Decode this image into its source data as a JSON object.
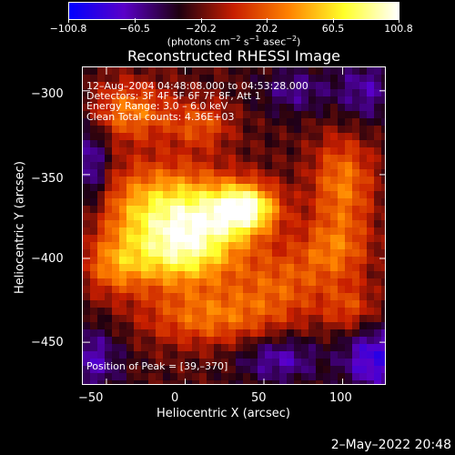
{
  "colorbar": {
    "tick_labels": [
      "−100.8",
      "−60.5",
      "−20.2",
      "20.2",
      "60.5",
      "100.8"
    ],
    "units_text": "(photons cm",
    "units_exp1": "−2",
    "units_mid1": " s",
    "units_exp2": "−1",
    "units_mid2": " asec",
    "units_exp3": "−2",
    "units_end": ")",
    "colors": [
      "#0000ff",
      "#5a00c8",
      "#1e0010",
      "#c81e00",
      "#ff8200",
      "#ffff28",
      "#ffffff"
    ]
  },
  "annotations": {
    "time_range": "12–Aug–2004 04:48:08.000 to 04:53:28.000",
    "detectors": "Detectors: 3F 4F 5F 6F 7F 8F, Att 1",
    "energy_range": "Energy Range: 3.0 – 6.0 keV",
    "clean_counts": "Clean    Total counts: 4.36E+03",
    "peak_position": "Position of Peak = [39,–370]"
  },
  "footer": {
    "date": "2–May–2022 20:48"
  },
  "chart_data": {
    "type": "heatmap",
    "title": "Reconstructed RHESSI Image",
    "xlabel": "Heliocentric X (arcsec)",
    "ylabel": "Heliocentric Y (arcsec)",
    "xlim": [
      -65,
      128
    ],
    "ylim": [
      -476,
      -286
    ],
    "x_ticks": [
      -50,
      0,
      50,
      100
    ],
    "x_tick_labels": [
      "−50",
      "0",
      "50",
      "100"
    ],
    "y_ticks": [
      -300,
      -350,
      -400,
      -450
    ],
    "y_tick_labels": [
      "−300",
      "−350",
      "−400",
      "−450"
    ],
    "zlim": [
      -100.8,
      100.8
    ],
    "peak": [
      39,
      -370
    ],
    "components": [
      {
        "x": 39,
        "y": -370,
        "amp": 100,
        "sx": 14,
        "sy": 10
      },
      {
        "x": 15,
        "y": -378,
        "amp": 70,
        "sx": 22,
        "sy": 18
      },
      {
        "x": -20,
        "y": -372,
        "amp": 75,
        "sx": 25,
        "sy": 20
      },
      {
        "x": -5,
        "y": -400,
        "amp": 60,
        "sx": 22,
        "sy": 14
      },
      {
        "x": -45,
        "y": -405,
        "amp": 45,
        "sx": 14,
        "sy": 12
      },
      {
        "x": -35,
        "y": -312,
        "amp": 55,
        "sx": 18,
        "sy": 12
      },
      {
        "x": 10,
        "y": -320,
        "amp": 40,
        "sx": 14,
        "sy": 10
      },
      {
        "x": 15,
        "y": -435,
        "amp": 50,
        "sx": 30,
        "sy": 12
      },
      {
        "x": 60,
        "y": -415,
        "amp": 40,
        "sx": 22,
        "sy": 16
      },
      {
        "x": 100,
        "y": -355,
        "amp": 55,
        "sx": 14,
        "sy": 20
      },
      {
        "x": 95,
        "y": -395,
        "amp": 45,
        "sx": 16,
        "sy": 14
      },
      {
        "x": 105,
        "y": -430,
        "amp": 35,
        "sx": 12,
        "sy": 10
      },
      {
        "x": 115,
        "y": -300,
        "amp": -35,
        "sx": 14,
        "sy": 14
      },
      {
        "x": 120,
        "y": -460,
        "amp": -55,
        "sx": 14,
        "sy": 14
      },
      {
        "x": -60,
        "y": -460,
        "amp": -40,
        "sx": 14,
        "sy": 14
      },
      {
        "x": 60,
        "y": -460,
        "amp": -40,
        "sx": 18,
        "sy": 10
      },
      {
        "x": 70,
        "y": -300,
        "amp": -30,
        "sx": 16,
        "sy": 10
      },
      {
        "x": -60,
        "y": -345,
        "amp": -45,
        "sx": 8,
        "sy": 20
      }
    ],
    "background_level": -25
  }
}
